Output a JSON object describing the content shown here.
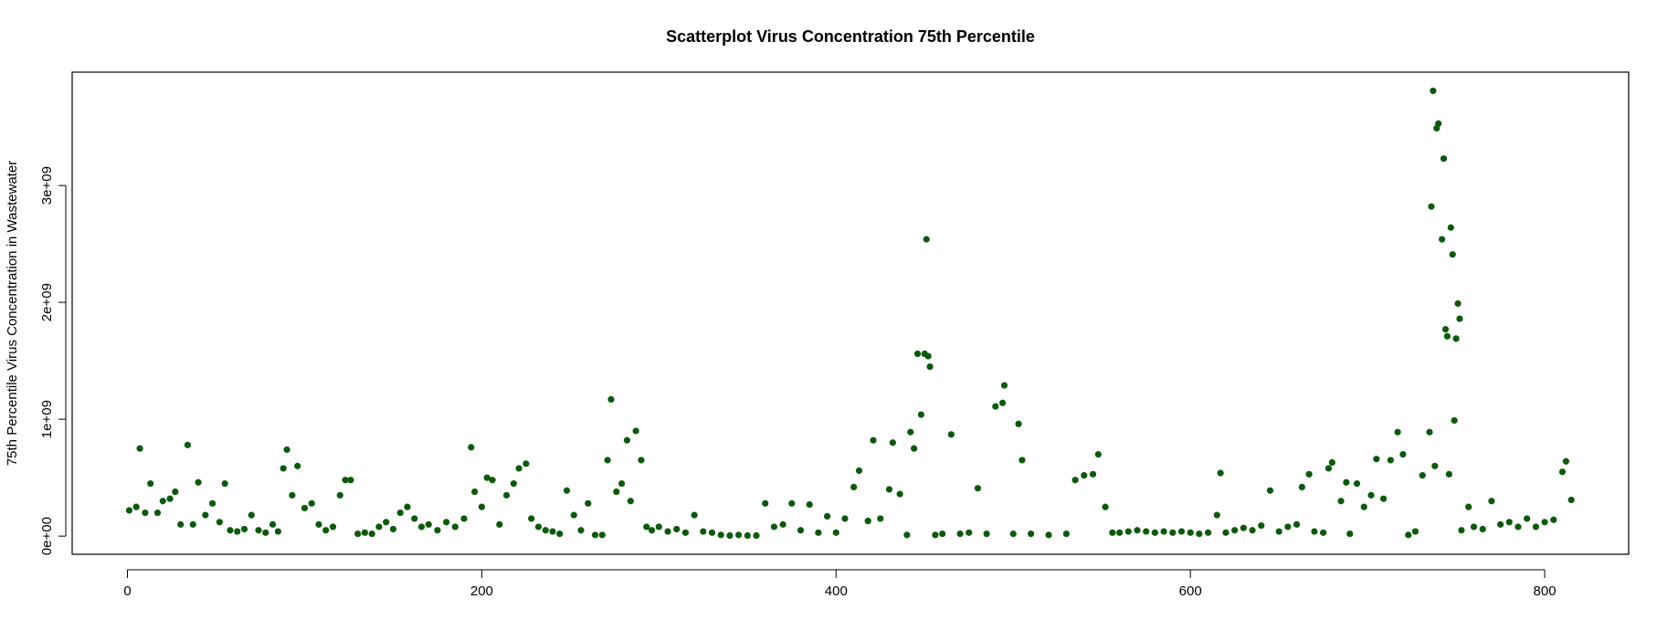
{
  "chart_data": {
    "type": "scatter",
    "title": "Scatterplot Virus Concentration 75th Percentile",
    "y_label": "75th Percentile Virus Concentration in Wastewater",
    "color": "#0b5a0b",
    "xlim": [
      -31.2,
      847.4
    ],
    "ylim": [
      -155000000.0,
      3970000000.0
    ],
    "xticks": [
      0,
      200,
      400,
      600,
      800
    ],
    "yticks": [
      {
        "value": 0,
        "label": "0e+00"
      },
      {
        "value": 1000000000.0,
        "label": "1e+09"
      },
      {
        "value": 2000000000.0,
        "label": "2e+09"
      },
      {
        "value": 3000000000.0,
        "label": "3e+09"
      }
    ],
    "x": [
      1,
      5,
      7,
      10,
      13,
      17,
      20,
      24,
      27,
      30,
      34,
      37,
      40,
      44,
      48,
      52,
      55,
      58,
      62,
      66,
      70,
      74,
      78,
      82,
      85,
      88,
      90,
      93,
      96,
      100,
      104,
      108,
      112,
      116,
      120,
      123,
      126,
      130,
      134,
      138,
      142,
      146,
      150,
      154,
      158,
      162,
      166,
      170,
      175,
      180,
      185,
      190,
      194,
      196,
      200,
      203,
      206,
      210,
      214,
      218,
      221,
      225,
      228,
      232,
      236,
      240,
      244,
      248,
      252,
      256,
      260,
      264,
      268,
      271,
      273,
      276,
      279,
      282,
      284,
      287,
      290,
      293,
      296,
      300,
      305,
      310,
      315,
      320,
      325,
      330,
      335,
      340,
      345,
      350,
      355,
      360,
      365,
      370,
      375,
      380,
      385,
      390,
      395,
      400,
      405,
      410,
      413,
      418,
      421,
      425,
      430,
      432,
      436,
      440,
      442,
      444,
      446,
      448,
      450,
      451,
      452,
      453,
      456,
      460,
      465,
      470,
      475,
      480,
      485,
      490,
      494,
      495,
      500,
      503,
      505,
      510,
      520,
      530,
      535,
      540,
      545,
      548,
      552,
      556,
      560,
      565,
      570,
      575,
      580,
      585,
      590,
      595,
      600,
      605,
      610,
      615,
      617,
      620,
      625,
      630,
      635,
      640,
      645,
      650,
      655,
      660,
      663,
      667,
      670,
      675,
      678,
      680,
      685,
      688,
      690,
      694,
      698,
      702,
      705,
      709,
      713,
      717,
      720,
      723,
      727,
      731,
      735,
      736,
      737,
      738,
      739,
      740,
      742,
      743,
      744,
      745,
      746,
      747,
      748,
      749,
      750,
      751,
      752,
      753,
      757,
      760,
      765,
      770,
      775,
      780,
      785,
      790,
      795,
      800,
      805,
      810,
      812,
      815
    ],
    "values": [
      220000000.0,
      250000000.0,
      750000000.0,
      200000000.0,
      450000000.0,
      200000000.0,
      300000000.0,
      320000000.0,
      380000000.0,
      100000000.0,
      780000000.0,
      100000000.0,
      460000000.0,
      180000000.0,
      280000000.0,
      120000000.0,
      450000000.0,
      50000000.0,
      40000000.0,
      60000000.0,
      180000000.0,
      50000000.0,
      30000000.0,
      100000000.0,
      40000000.0,
      580000000.0,
      740000000.0,
      350000000.0,
      600000000.0,
      240000000.0,
      280000000.0,
      100000000.0,
      50000000.0,
      80000000.0,
      350000000.0,
      480000000.0,
      480000000.0,
      20000000.0,
      30000000.0,
      20000000.0,
      80000000.0,
      120000000.0,
      60000000.0,
      200000000.0,
      250000000.0,
      150000000.0,
      80000000.0,
      100000000.0,
      50000000.0,
      120000000.0,
      80000000.0,
      150000000.0,
      760000000.0,
      380000000.0,
      250000000.0,
      500000000.0,
      480000000.0,
      100000000.0,
      350000000.0,
      450000000.0,
      580000000.0,
      620000000.0,
      150000000.0,
      80000000.0,
      50000000.0,
      40000000.0,
      20000000.0,
      390000000.0,
      180000000.0,
      50000000.0,
      280000000.0,
      10000000.0,
      10000000.0,
      650000000.0,
      1170000000.0,
      380000000.0,
      450000000.0,
      820000000.0,
      300000000.0,
      900000000.0,
      650000000.0,
      80000000.0,
      50000000.0,
      80000000.0,
      40000000.0,
      60000000.0,
      30000000.0,
      180000000.0,
      40000000.0,
      30000000.0,
      10000000.0,
      5000000.0,
      10000000.0,
      5000000.0,
      5000000.0,
      280000000.0,
      80000000.0,
      100000000.0,
      280000000.0,
      50000000.0,
      270000000.0,
      30000000.0,
      170000000.0,
      30000000.0,
      150000000.0,
      420000000.0,
      560000000.0,
      130000000.0,
      820000000.0,
      150000000.0,
      400000000.0,
      800000000.0,
      360000000.0,
      10000000.0,
      890000000.0,
      750000000.0,
      1560000000.0,
      1040000000.0,
      1560000000.0,
      2540000000.0,
      1540000000.0,
      1450000000.0,
      10000000.0,
      20000000.0,
      870000000.0,
      20000000.0,
      30000000.0,
      410000000.0,
      20000000.0,
      1110000000.0,
      1140000000.0,
      1290000000.0,
      20000000.0,
      960000000.0,
      650000000.0,
      20000000.0,
      10000000.0,
      20000000.0,
      480000000.0,
      520000000.0,
      530000000.0,
      700000000.0,
      250000000.0,
      30000000.0,
      30000000.0,
      40000000.0,
      50000000.0,
      40000000.0,
      30000000.0,
      40000000.0,
      30000000.0,
      40000000.0,
      30000000.0,
      20000000.0,
      30000000.0,
      180000000.0,
      540000000.0,
      30000000.0,
      50000000.0,
      70000000.0,
      50000000.0,
      90000000.0,
      390000000.0,
      40000000.0,
      80000000.0,
      100000000.0,
      420000000.0,
      530000000.0,
      40000000.0,
      30000000.0,
      580000000.0,
      630000000.0,
      300000000.0,
      460000000.0,
      20000000.0,
      450000000.0,
      250000000.0,
      350000000.0,
      660000000.0,
      320000000.0,
      650000000.0,
      890000000.0,
      700000000.0,
      10000000.0,
      40000000.0,
      520000000.0,
      890000000.0,
      2820000000.0,
      3810000000.0,
      600000000.0,
      3490000000.0,
      3530000000.0,
      2540000000.0,
      3230000000.0,
      1770000000.0,
      1710000000.0,
      530000000.0,
      2640000000.0,
      2410000000.0,
      990000000.0,
      1690000000.0,
      1990000000.0,
      1860000000.0,
      50000000.0,
      250000000.0,
      80000000.0,
      60000000.0,
      300000000.0,
      100000000.0,
      120000000.0,
      80000000.0,
      150000000.0,
      80000000.0,
      120000000.0,
      140000000.0,
      550000000.0,
      640000000.0,
      310000000.0
    ]
  }
}
